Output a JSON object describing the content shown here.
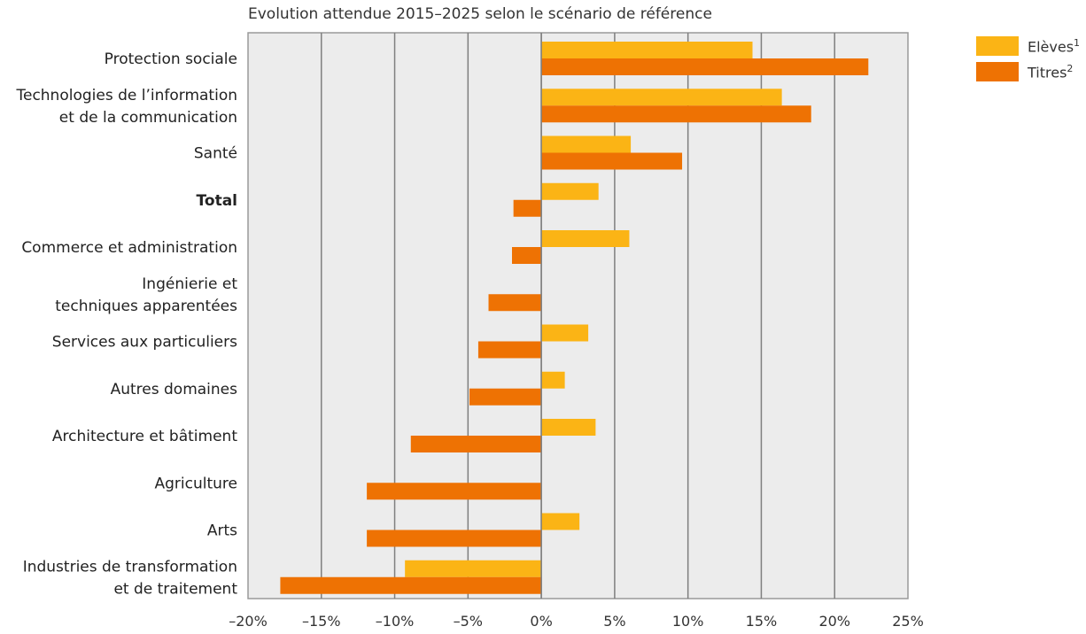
{
  "chart_data": {
    "type": "bar",
    "orientation": "horizontal",
    "title": "Evolution attendue 2015–2025 selon le scénario de référence",
    "categories": [
      "Protection sociale",
      "Technologies de l’information|et de la communication",
      "Santé",
      "Total",
      "Commerce et administration",
      "Ingénierie et|techniques apparentées",
      "Services aux particuliers",
      "Autres domaines",
      "Architecture et bâtiment",
      "Agriculture",
      "Arts",
      "Industries de transformation|et de traitement"
    ],
    "series": [
      {
        "name": "Elèves",
        "footnote": "1",
        "color": "#FBB415",
        "values": [
          14.4,
          16.4,
          6.1,
          3.9,
          6.0,
          0.0,
          3.2,
          1.6,
          3.7,
          0.0,
          2.6,
          -9.3
        ]
      },
      {
        "name": "Titres",
        "footnote": "2",
        "color": "#EE7203",
        "values": [
          22.3,
          18.4,
          9.6,
          -1.9,
          -2.0,
          -3.6,
          -4.3,
          -4.9,
          -8.9,
          -11.9,
          -11.9,
          -17.8
        ]
      }
    ],
    "xlim": [
      -20,
      25
    ],
    "xticks": [
      -20,
      -15,
      -10,
      -5,
      0,
      5,
      10,
      15,
      20,
      25
    ],
    "xtick_labels": [
      "–20%",
      "–15%",
      "–10%",
      "–5%",
      "0%",
      "5%",
      "10%",
      "15%",
      "20%",
      "25%"
    ],
    "bold_categories": [
      "Total"
    ],
    "grid": true,
    "plot_background": "#ECECEC",
    "gridline_color": "#7F7F7F",
    "legend_position": "top-right"
  }
}
